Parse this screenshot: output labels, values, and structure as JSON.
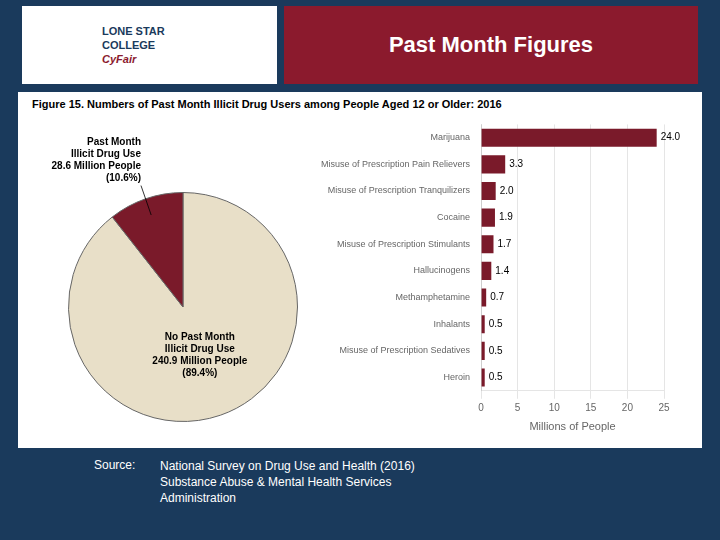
{
  "title": "Past Month Figures",
  "subtitle": "Figure 15. Numbers of Past Month Illicit Drug Users among People Aged 12 or Older: 2016",
  "annotations": [
    "LONE STAR",
    "COLLEGE",
    "CyFair",
    "Source:",
    "National Survey on Drug Use and Health (2016)\nSubstance Abuse & Mental Health Services\nAdministration"
  ],
  "chart_data": [
    {
      "type": "pie",
      "values": [
        89.4,
        10.6
      ],
      "colors": [
        "#e8dfc8",
        "#7a1a2a"
      ],
      "annotations": [
        "No Past Month\nIllicit Drug Use\n240.9 Million People\n(89.4%)",
        "Past Month\nIllicit Drug Use\n28.6 Million People\n(10.6%)"
      ]
    },
    {
      "type": "bar",
      "orientation": "horizontal",
      "categories": [
        "Marijuana",
        "Misuse of Prescription Pain Relievers",
        "Misuse of Prescription Tranquilizers",
        "Cocaine",
        "Misuse of Prescription Stimulants",
        "Hallucinogens",
        "Methamphetamine",
        "Inhalants",
        "Misuse of Prescription Sedatives",
        "Heroin"
      ],
      "values": [
        24.0,
        3.3,
        2.0,
        1.9,
        1.7,
        1.4,
        0.7,
        0.5,
        0.5,
        0.5
      ],
      "value_labels": [
        "24.0",
        "3.3",
        "2.0",
        "1.9",
        "1.7",
        "1.4",
        "0.7",
        "0.5",
        "0.5",
        "0.5"
      ],
      "color": "#7a1a2a",
      "xlim": [
        0,
        25
      ],
      "xticks": [
        0,
        5,
        10,
        15,
        20,
        25
      ],
      "xlabel": "Millions of People",
      "grid": true,
      "data_labels": true
    }
  ]
}
